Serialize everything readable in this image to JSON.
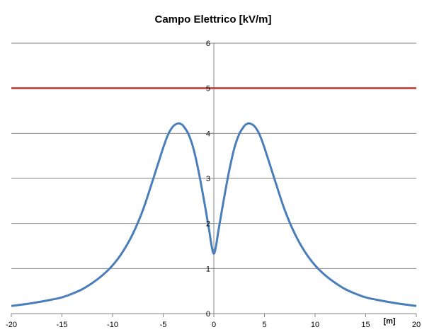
{
  "chart_data": {
    "type": "line",
    "title": "Campo Elettrico [kV/m]",
    "xlabel": "[m]",
    "ylabel": "",
    "xlim": [
      -20,
      20
    ],
    "ylim": [
      0,
      6
    ],
    "x_ticks": [
      "-20",
      "-15",
      "-10",
      "-5",
      "0",
      "5",
      "10",
      "15",
      "20"
    ],
    "y_ticks": [
      "0",
      "1",
      "2",
      "3",
      "4",
      "5",
      "6"
    ],
    "grid": "horizontal",
    "legend": "none",
    "series": [
      {
        "color": "#4a7ebb",
        "x": [
          -20,
          -18,
          -16,
          -15,
          -14,
          -13,
          -12,
          -11,
          -10,
          -9,
          -8,
          -7,
          -6,
          -5,
          -4.5,
          -4,
          -3.5,
          -3.2,
          -3,
          -2.5,
          -2,
          -1.5,
          -1,
          -0.5,
          -0.2,
          0,
          0.2,
          0.5,
          1,
          1.5,
          2,
          2.5,
          3,
          3.2,
          3.5,
          4,
          4.5,
          5,
          6,
          7,
          8,
          9,
          10,
          11,
          12,
          13,
          14,
          15,
          16,
          18,
          20
        ],
        "y": [
          0.17,
          0.23,
          0.31,
          0.36,
          0.44,
          0.54,
          0.68,
          0.85,
          1.07,
          1.37,
          1.77,
          2.3,
          2.98,
          3.68,
          3.98,
          4.16,
          4.22,
          4.2,
          4.16,
          3.98,
          3.65,
          3.15,
          2.55,
          1.9,
          1.48,
          1.33,
          1.48,
          1.9,
          2.55,
          3.15,
          3.65,
          3.98,
          4.16,
          4.2,
          4.22,
          4.16,
          3.98,
          3.68,
          2.98,
          2.3,
          1.77,
          1.37,
          1.07,
          0.85,
          0.68,
          0.54,
          0.44,
          0.36,
          0.31,
          0.23,
          0.17
        ]
      },
      {
        "color": "#c0504d",
        "x": [
          -20,
          20
        ],
        "y": [
          5,
          5
        ]
      }
    ]
  }
}
